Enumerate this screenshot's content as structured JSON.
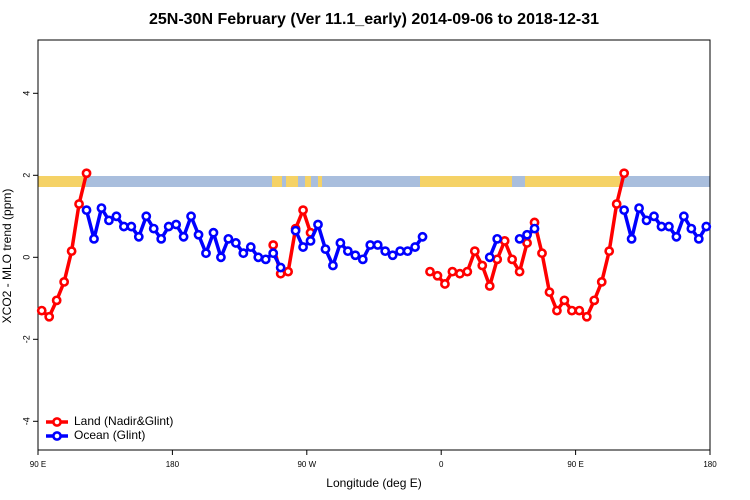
{
  "chart_data": {
    "type": "line",
    "title": "25N-30N February (Ver 11.1_early)   2014-09-06 to 2018-12-31",
    "xlabel": "Longitude (deg E)",
    "ylabel": "XCO2 - MLO trend (ppm)",
    "xlim": [
      90,
      540
    ],
    "ylim": [
      -4.7,
      5.3
    ],
    "xticks": [
      {
        "value": 90,
        "label": "90 E"
      },
      180,
      {
        "value": 270,
        "label": "90 W"
      },
      {
        "value": 360,
        "label": "0"
      },
      {
        "value": 450,
        "label": "90 E"
      },
      {
        "value": 540,
        "label": "180"
      }
    ],
    "yticks": [
      -4,
      -2,
      0,
      2,
      4
    ],
    "legend": "bottom left",
    "series": [
      {
        "name": "Land (Nadir&Glint)",
        "color": "#ff0000",
        "x": [
          92.5,
          97.5,
          102.5,
          107.5,
          112.5,
          117.5,
          122.5,
          127.5,
          247.5,
          252.5,
          257.5,
          262.5,
          267.5,
          272.5,
          277.5,
          352.5,
          357.5,
          362.5,
          367.5,
          372.5,
          377.5,
          382.5,
          387.5,
          392.5,
          397.5,
          402.5,
          407.5,
          412.5,
          417.5,
          422.5,
          427.5,
          432.5,
          437.5,
          442.5,
          447.5,
          452.5,
          457.5,
          462.5,
          467.5,
          472.5,
          477.5,
          482.5
        ],
        "values": [
          -1.3,
          -1.45,
          -1.05,
          -0.6,
          0.15,
          1.3,
          2.05,
          null,
          0.3,
          -0.4,
          -0.35,
          0.7,
          1.15,
          0.6,
          null,
          -0.35,
          -0.45,
          -0.65,
          -0.35,
          -0.4,
          -0.35,
          0.15,
          -0.2,
          -0.7,
          -0.05,
          0.4,
          -0.05,
          -0.35,
          0.35,
          0.85,
          0.1,
          -0.85,
          -1.3,
          -1.05,
          -1.3,
          -1.3,
          -1.45,
          -1.05,
          -0.6,
          0.15,
          1.3,
          2.05
        ]
      },
      {
        "name": "Ocean (Glint)",
        "color": "#0000ff",
        "x": [
          122.5,
          127.5,
          132.5,
          137.5,
          142.5,
          147.5,
          152.5,
          157.5,
          162.5,
          167.5,
          172.5,
          177.5,
          182.5,
          187.5,
          192.5,
          197.5,
          202.5,
          207.5,
          212.5,
          217.5,
          222.5,
          227.5,
          232.5,
          237.5,
          242.5,
          247.5,
          252.5,
          257.5,
          262.5,
          267.5,
          272.5,
          277.5,
          282.5,
          287.5,
          292.5,
          297.5,
          302.5,
          307.5,
          312.5,
          317.5,
          322.5,
          327.5,
          332.5,
          337.5,
          342.5,
          347.5,
          352.5,
          392.5,
          397.5,
          402.5,
          412.5,
          417.5,
          422.5,
          427.5,
          482.5,
          487.5,
          492.5,
          497.5,
          502.5,
          507.5,
          512.5,
          517.5,
          522.5,
          527.5,
          532.5,
          537.5
        ],
        "values": [
          1.15,
          0.45,
          1.2,
          0.9,
          1.0,
          0.75,
          0.75,
          0.5,
          1.0,
          0.7,
          0.45,
          0.75,
          0.8,
          0.5,
          1.0,
          0.55,
          0.1,
          0.6,
          0.0,
          0.45,
          0.35,
          0.1,
          0.25,
          0.0,
          -0.05,
          0.1,
          -0.25,
          null,
          0.65,
          0.25,
          0.4,
          0.8,
          0.2,
          -0.2,
          0.35,
          0.15,
          0.05,
          -0.05,
          0.3,
          0.3,
          0.15,
          0.05,
          0.15,
          0.15,
          0.25,
          0.5,
          null,
          0.0,
          0.45,
          null,
          0.45,
          0.55,
          0.7,
          null,
          1.15,
          0.45,
          1.2,
          0.9,
          1.0,
          0.75,
          0.75,
          0.5,
          1.0,
          0.7,
          0.45,
          0.75
        ]
      }
    ]
  }
}
